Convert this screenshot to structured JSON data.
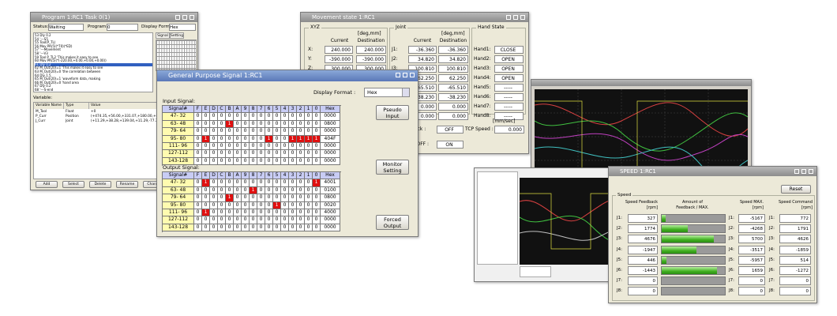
{
  "program_window": {
    "title": "Program 1:RC1 Task 0(1)",
    "status_label": "Status:",
    "status": "Waiting",
    "program_label": "Program:",
    "program": "0",
    "format_label": "Display Format :",
    "format": "Hex",
    "tabs": [
      "Signal",
      "Setting"
    ],
    "code": [
      "53    Dly 0.2",
      "54  '---S5",
      "55      Tool(P_TL)",
      "56      Mov PA(5)(*70)(*ED)",
      "57  '---Movement",
      "58  '---V3",
      "59      Tool P_TL2      'This makes it easy to see",
      "60      Mov PA(5)(*(-220.00,+0.00,+0.00,+0.00))",
      "61      Dly 0.2",
      "62      M_Out(20)=1      'This makes it easy to see",
      "63      M_Out(20)=0      'the correlation between",
      "64      Dly 1.5",
      "65      M_Out(20)=1      'waveform data, making",
      "66      M_Out(20)=0      'hand area",
      "67      Dly 0.2",
      "68  '---S-end"
    ],
    "variables_label": "Variable:",
    "var_headers": [
      "Variable Name",
      "Type",
      "Value"
    ],
    "var_rows": [
      [
        "M_Tool",
        "Float",
        "+0"
      ],
      [
        "P_Curr",
        "Position",
        "(+474.35,+56.00,+331.07,+180.00,+86.50,+0.00)"
      ],
      [
        "J_Curr",
        "Joint",
        "(+11.29,+38.28,+139.04,+11.29,-77.37,-0.00)"
      ]
    ],
    "buttons": [
      "Add",
      "Select",
      "Delete",
      "Rename",
      "Change",
      "Load"
    ]
  },
  "movement_window": {
    "title": "Movement state 1:RC1",
    "xyz_label": "XYZ",
    "xyz_unit": "[deg,mm]",
    "joint_label": "Joint",
    "joint_unit": "[deg,mm]",
    "hand_label": "Hand State",
    "current_header": "Current",
    "destination_header": "Destination",
    "xyz_rows": [
      {
        "label": "X:",
        "current": "240.000",
        "destination": "240.000"
      },
      {
        "label": "Y:",
        "current": "-390.000",
        "destination": "-390.000"
      },
      {
        "label": "Z:",
        "current": "300.000",
        "destination": "300.000"
      }
    ],
    "joint_rows": [
      {
        "label": "J1:",
        "current": "-36.360",
        "destination": "-36.360"
      },
      {
        "label": "J2:",
        "current": "34.820",
        "destination": "34.820"
      },
      {
        "label": "J3:",
        "current": "100.810",
        "destination": "100.810"
      },
      {
        "current": "62.250",
        "destination": "62.250"
      },
      {
        "current": "-65.510",
        "destination": "-65.510"
      },
      {
        "current": "-38.230",
        "destination": "-38.230"
      },
      {
        "current": "0.000",
        "destination": "0.000"
      },
      {
        "current": "0.000",
        "destination": "0.000"
      }
    ],
    "hand_rows": [
      {
        "label": "Hand1:",
        "state": "CLOSE"
      },
      {
        "label": "Hand2:",
        "state": "OPEN"
      },
      {
        "label": "Hand3:",
        "state": "OPEN"
      },
      {
        "label": "Hand4:",
        "state": "OPEN"
      },
      {
        "label": "Hand5:",
        "state": "-----"
      },
      {
        "label": "Hand6:",
        "state": "-----"
      },
      {
        "label": "Hand7:",
        "state": "-----"
      },
      {
        "label": "Hand8:",
        "state": "-----"
      }
    ],
    "speed_unit": "[mm/sec]",
    "lock_label": "e Lock :",
    "lock": "OFF",
    "tcp_label": "TCP Speed :",
    "tcp": "0.000",
    "onoff_label": "N/OFF :",
    "onoff": "ON"
  },
  "signal_window": {
    "title": "General Purpose Signal 1:RC1",
    "format_label": "Display Format :",
    "format": "Hex",
    "signal_header": "Signal#",
    "bit_headers": [
      "F",
      "E",
      "D",
      "C",
      "B",
      "A",
      "9",
      "8",
      "7",
      "6",
      "5",
      "4",
      "3",
      "2",
      "1",
      "0"
    ],
    "hex_header": "Hex",
    "input_label": "Input Signal:",
    "output_label": "Output Signal:",
    "input_rows": [
      {
        "signal": "47- 32",
        "bits": [
          0,
          0,
          0,
          0,
          0,
          0,
          0,
          0,
          0,
          0,
          0,
          0,
          0,
          0,
          0,
          0
        ],
        "hex": "0000"
      },
      {
        "signal": "63- 48",
        "bits": [
          0,
          0,
          0,
          0,
          1,
          0,
          0,
          0,
          0,
          0,
          0,
          0,
          0,
          0,
          0,
          0
        ],
        "hex": "0800"
      },
      {
        "signal": "79- 64",
        "bits": [
          0,
          0,
          0,
          0,
          0,
          0,
          0,
          0,
          0,
          0,
          0,
          0,
          0,
          0,
          0,
          0
        ],
        "hex": "0000"
      },
      {
        "signal": "95- 80",
        "bits": [
          0,
          1,
          0,
          0,
          0,
          0,
          0,
          0,
          0,
          1,
          0,
          0,
          1,
          1,
          1,
          1
        ],
        "hex": "404F"
      },
      {
        "signal": "111- 96",
        "bits": [
          0,
          0,
          0,
          0,
          0,
          0,
          0,
          0,
          0,
          0,
          0,
          0,
          0,
          0,
          0,
          0
        ],
        "hex": "0000"
      },
      {
        "signal": "127-112",
        "bits": [
          0,
          0,
          0,
          0,
          0,
          0,
          0,
          0,
          0,
          0,
          0,
          0,
          0,
          0,
          0,
          0
        ],
        "hex": "0000"
      },
      {
        "signal": "143-128",
        "bits": [
          0,
          0,
          0,
          0,
          0,
          0,
          0,
          0,
          0,
          0,
          0,
          0,
          0,
          0,
          0,
          0
        ],
        "hex": "0000"
      }
    ],
    "output_rows": [
      {
        "signal": "47- 32",
        "bits": [
          0,
          1,
          0,
          0,
          0,
          0,
          0,
          0,
          0,
          0,
          0,
          0,
          0,
          0,
          0,
          1
        ],
        "hex": "4001"
      },
      {
        "signal": "63- 48",
        "bits": [
          0,
          0,
          0,
          0,
          0,
          0,
          0,
          1,
          0,
          0,
          0,
          0,
          0,
          0,
          0,
          0
        ],
        "hex": "0100"
      },
      {
        "signal": "79- 64",
        "bits": [
          0,
          0,
          0,
          0,
          1,
          0,
          0,
          0,
          0,
          0,
          0,
          0,
          0,
          0,
          0,
          0
        ],
        "hex": "0800"
      },
      {
        "signal": "95- 80",
        "bits": [
          0,
          0,
          0,
          0,
          0,
          0,
          0,
          0,
          0,
          0,
          1,
          0,
          0,
          0,
          0,
          0
        ],
        "hex": "0020"
      },
      {
        "signal": "111- 96",
        "bits": [
          0,
          1,
          0,
          0,
          0,
          0,
          0,
          0,
          0,
          0,
          0,
          0,
          0,
          0,
          0,
          0
        ],
        "hex": "4000"
      },
      {
        "signal": "127-112",
        "bits": [
          0,
          0,
          0,
          0,
          0,
          0,
          0,
          0,
          0,
          0,
          0,
          0,
          0,
          0,
          0,
          0
        ],
        "hex": "0000"
      },
      {
        "signal": "143-128",
        "bits": [
          0,
          0,
          0,
          0,
          0,
          0,
          0,
          0,
          0,
          0,
          0,
          0,
          0,
          0,
          0,
          0
        ],
        "hex": "0000"
      }
    ],
    "buttons": [
      "Pseudo Input",
      "Monitor Setting",
      "Forced Output"
    ]
  },
  "speed_window": {
    "title": "SPEED 1:RC1",
    "reset": "Reset",
    "group_label": "Speed",
    "headers": [
      {
        "text": "Speed Feedback",
        "unit": "[rpm]"
      },
      {
        "text": "Amount of",
        "unit": "Feedback / MAX."
      },
      {
        "text": "Speed MAX.",
        "unit": "[rpm]"
      },
      {
        "text": "Speed Command",
        "unit": "[rpm]"
      }
    ],
    "rows": [
      {
        "label": "J1:",
        "feedback": 327,
        "max": -5167,
        "command": 772
      },
      {
        "label": "J2:",
        "feedback": 1774,
        "max": -4268,
        "command": 1791
      },
      {
        "label": "J3:",
        "feedback": 4676,
        "max": 5700,
        "command": 4626
      },
      {
        "label": "J4:",
        "feedback": -1947,
        "max": -3517,
        "command": -1859
      },
      {
        "label": "J5:",
        "feedback": 446,
        "max": -5957,
        "command": 514
      },
      {
        "label": "J6:",
        "feedback": -1443,
        "max": 1659,
        "command": -1272
      },
      {
        "label": "J7:",
        "feedback": 0,
        "max": 0,
        "command": 0
      },
      {
        "label": "J8:",
        "feedback": 0,
        "max": 0,
        "command": 0
      }
    ]
  }
}
